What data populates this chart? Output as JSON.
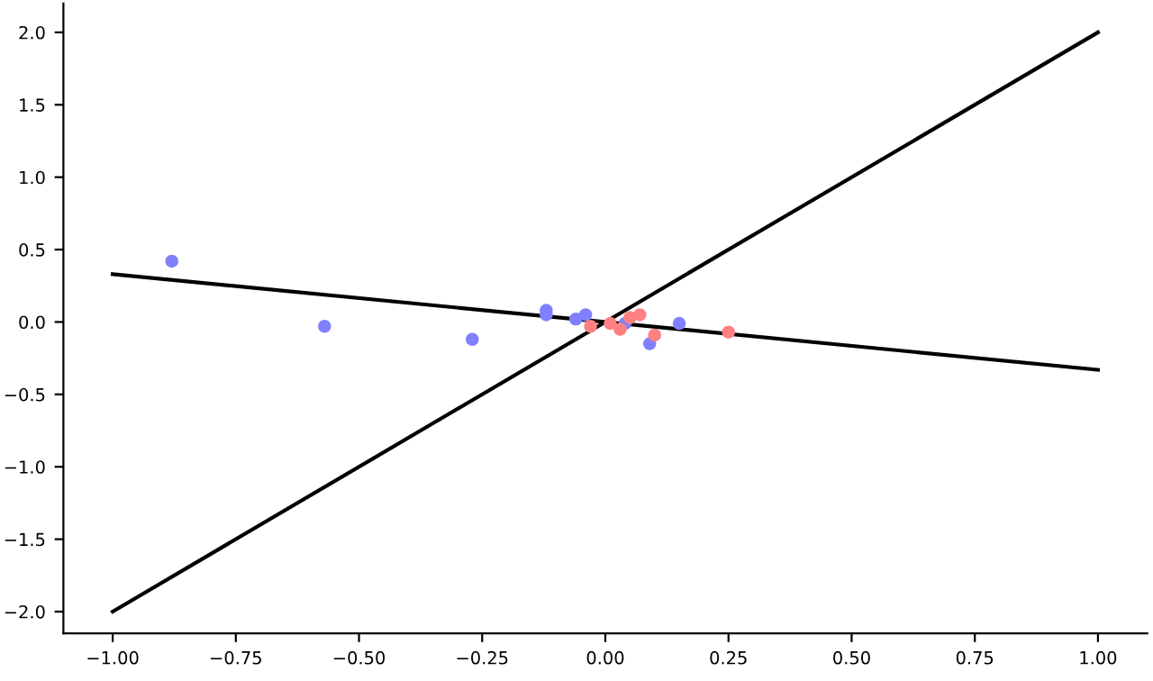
{
  "chart_data": {
    "type": "scatter",
    "xlim": [
      -1.1,
      1.1
    ],
    "ylim": [
      -2.15,
      2.2
    ],
    "xticks": [
      {
        "value": -1.0,
        "label": "−1.00"
      },
      {
        "value": -0.75,
        "label": "−0.75"
      },
      {
        "value": -0.5,
        "label": "−0.50"
      },
      {
        "value": -0.25,
        "label": "−0.25"
      },
      {
        "value": 0.0,
        "label": "0.00"
      },
      {
        "value": 0.25,
        "label": "0.25"
      },
      {
        "value": 0.5,
        "label": "0.50"
      },
      {
        "value": 0.75,
        "label": "0.75"
      },
      {
        "value": 1.0,
        "label": "1.00"
      }
    ],
    "yticks": [
      {
        "value": -2.0,
        "label": "−2.0"
      },
      {
        "value": -1.5,
        "label": "−1.5"
      },
      {
        "value": -1.0,
        "label": "−1.0"
      },
      {
        "value": -0.5,
        "label": "−0.5"
      },
      {
        "value": 0.0,
        "label": "0.0"
      },
      {
        "value": 0.5,
        "label": "0.5"
      },
      {
        "value": 1.0,
        "label": "1.0"
      },
      {
        "value": 1.5,
        "label": "1.5"
      },
      {
        "value": 2.0,
        "label": "2.0"
      }
    ],
    "grid": false,
    "series": [
      {
        "type": "line",
        "marker": "none",
        "color": "#000000",
        "x": [
          -1.0,
          1.0
        ],
        "values": [
          -2.0,
          2.0
        ]
      },
      {
        "type": "line",
        "marker": "none",
        "color": "#000000",
        "x": [
          -1.0,
          1.0
        ],
        "values": [
          0.33,
          -0.33
        ]
      },
      {
        "marker": "circle",
        "color": "#8080ff",
        "x": [
          -0.88,
          -0.57,
          -0.27,
          -0.12,
          -0.12,
          -0.06,
          -0.04,
          0.04,
          0.09,
          0.15
        ],
        "values": [
          0.42,
          -0.03,
          -0.12,
          0.08,
          0.05,
          0.02,
          0.05,
          -0.01,
          -0.15,
          -0.01
        ]
      },
      {
        "marker": "circle",
        "color": "#ff8080",
        "x": [
          -0.03,
          0.01,
          0.03,
          0.05,
          0.07,
          0.1,
          0.25
        ],
        "values": [
          -0.03,
          -0.01,
          -0.05,
          0.03,
          0.05,
          -0.09,
          -0.07
        ]
      }
    ]
  }
}
